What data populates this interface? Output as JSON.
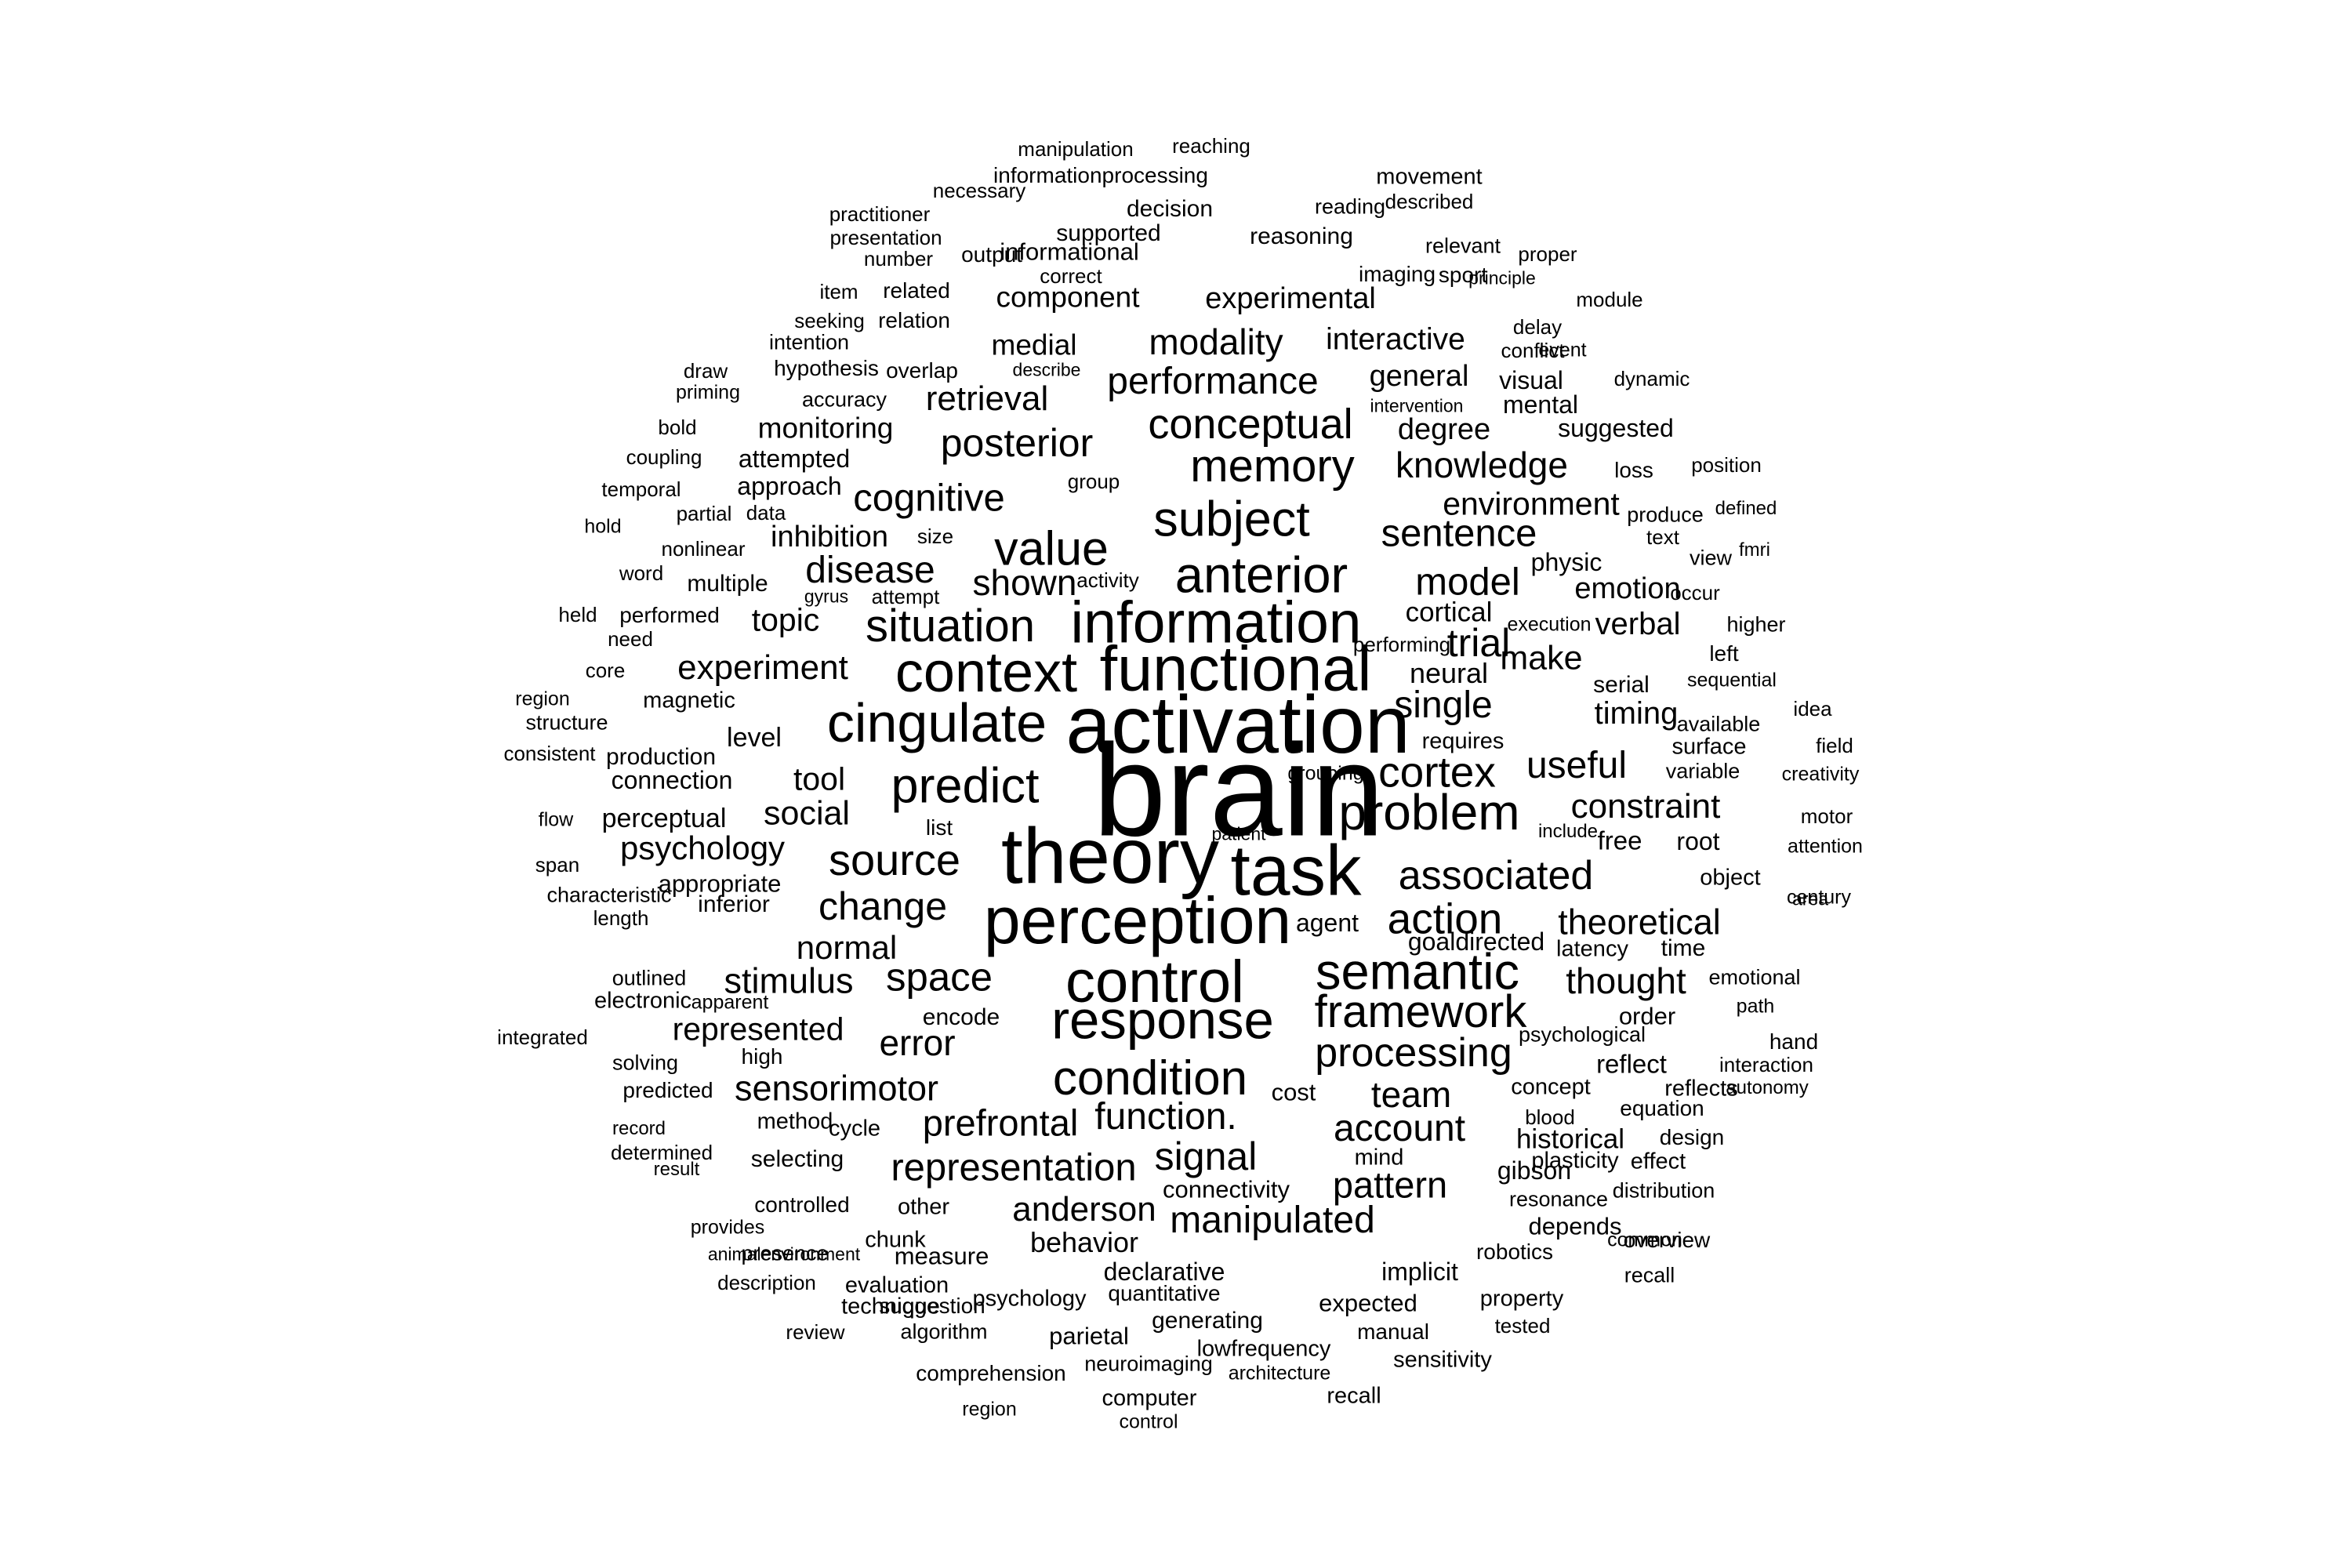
{
  "word_cloud": {
    "text_color": "#000000",
    "background_color": "#ffffff",
    "words": [
      "brain",
      "activation",
      "theory",
      "task",
      "perception",
      "functional",
      "information",
      "control",
      "response",
      "context",
      "cingulate",
      "semantic",
      "anterior",
      "subject",
      "value",
      "predict",
      "problem",
      "condition",
      "framework",
      "memory",
      "source",
      "associated",
      "situation",
      "cortex",
      "model",
      "processing",
      "change",
      "conceptual",
      "action",
      "sentence",
      "disease",
      "cognitive",
      "posterior",
      "single",
      "function.",
      "representation",
      "performance",
      "prefrontal",
      "space",
      "error",
      "trial",
      "signal",
      "stimulus",
      "modality",
      "shown",
      "useful",
      "theoretical",
      "retrieval",
      "experiment",
      "constraint",
      "account",
      "knowledge",
      "manipulated",
      "anderson",
      "pattern",
      "make",
      "social",
      "sensorimotor",
      "team",
      "environment",
      "tool",
      "normal",
      "psychology",
      "represented",
      "topic",
      "thought",
      "verbal",
      "inhibition",
      "emotion",
      "timing",
      "general",
      "interactive",
      "medial",
      "monitoring",
      "cortical",
      "neural",
      "component",
      "experimental",
      "degree",
      "behavior",
      "level",
      "suggested",
      "historical",
      "visual",
      "perceptual",
      "connection",
      "gibson",
      "attempted",
      "approach",
      "mental",
      "physic",
      "goaldirected",
      "informational",
      "supported",
      "decision",
      "reasoning",
      "movement",
      "informationprocessing",
      "manipulation",
      "reaching",
      "necessary",
      "practitioner",
      "presentation",
      "number",
      "output",
      "correct",
      "item",
      "related",
      "sport",
      "imaging",
      "relevant",
      "reading",
      "described",
      "proper",
      "principle",
      "module",
      "seeking",
      "relation",
      "intention",
      "hypothesis",
      "overlap",
      "describe",
      "delay",
      "conflict",
      "event",
      "draw",
      "priming",
      "accuracy",
      "dynamic",
      "intervention",
      "bold",
      "coupling",
      "temporal",
      "group",
      "loss",
      "position",
      "partial",
      "data",
      "hold",
      "produce",
      "defined",
      "text",
      "nonlinear",
      "size",
      "activity",
      "view",
      "fmri",
      "word",
      "multiple",
      "gyrus",
      "attempt",
      "occur",
      "held",
      "performed",
      "higher",
      "need",
      "performing",
      "execution",
      "left",
      "core",
      "sequential",
      "region",
      "magnetic",
      "serial",
      "available",
      "structure",
      "idea",
      "consistent",
      "production",
      "requires",
      "surface",
      "field",
      "variable",
      "grouping",
      "creativity",
      "list",
      "patient",
      "include",
      "free",
      "root",
      "flow",
      "motor",
      "span",
      "appropriate",
      "object",
      "attention",
      "characteristic",
      "inferior",
      "century",
      "length",
      "agent",
      "area",
      "latency",
      "time",
      "outlined",
      "emotional",
      "electronic",
      "apparent",
      "encode",
      "order",
      "path",
      "integrated",
      "psychological",
      "high",
      "hand",
      "solving",
      "predicted",
      "reflect",
      "interaction",
      "autonomy",
      "cost",
      "concept",
      "reflects",
      "method",
      "cycle",
      "blood",
      "equation",
      "record",
      "design",
      "determined",
      "result",
      "selecting",
      "mind",
      "plasticity",
      "effect",
      "distribution",
      "controlled",
      "other",
      "connectivity",
      "resonance",
      "provides",
      "depends",
      "overview",
      "chunk",
      "presence",
      "measure",
      "robotics",
      "common",
      "animalenvironment",
      "evaluation",
      "declarative",
      "implicit",
      "recall",
      "description",
      "technique",
      "suggestion",
      "quantitative",
      "expected",
      "property",
      "review",
      "algorithm",
      "psychology",
      "generating",
      "parietal",
      "lowfrequency",
      "manual",
      "tested",
      "comprehension",
      "neuroimaging",
      "architecture",
      "sensitivity",
      "computer",
      "recall",
      "region",
      "control"
    ]
  }
}
